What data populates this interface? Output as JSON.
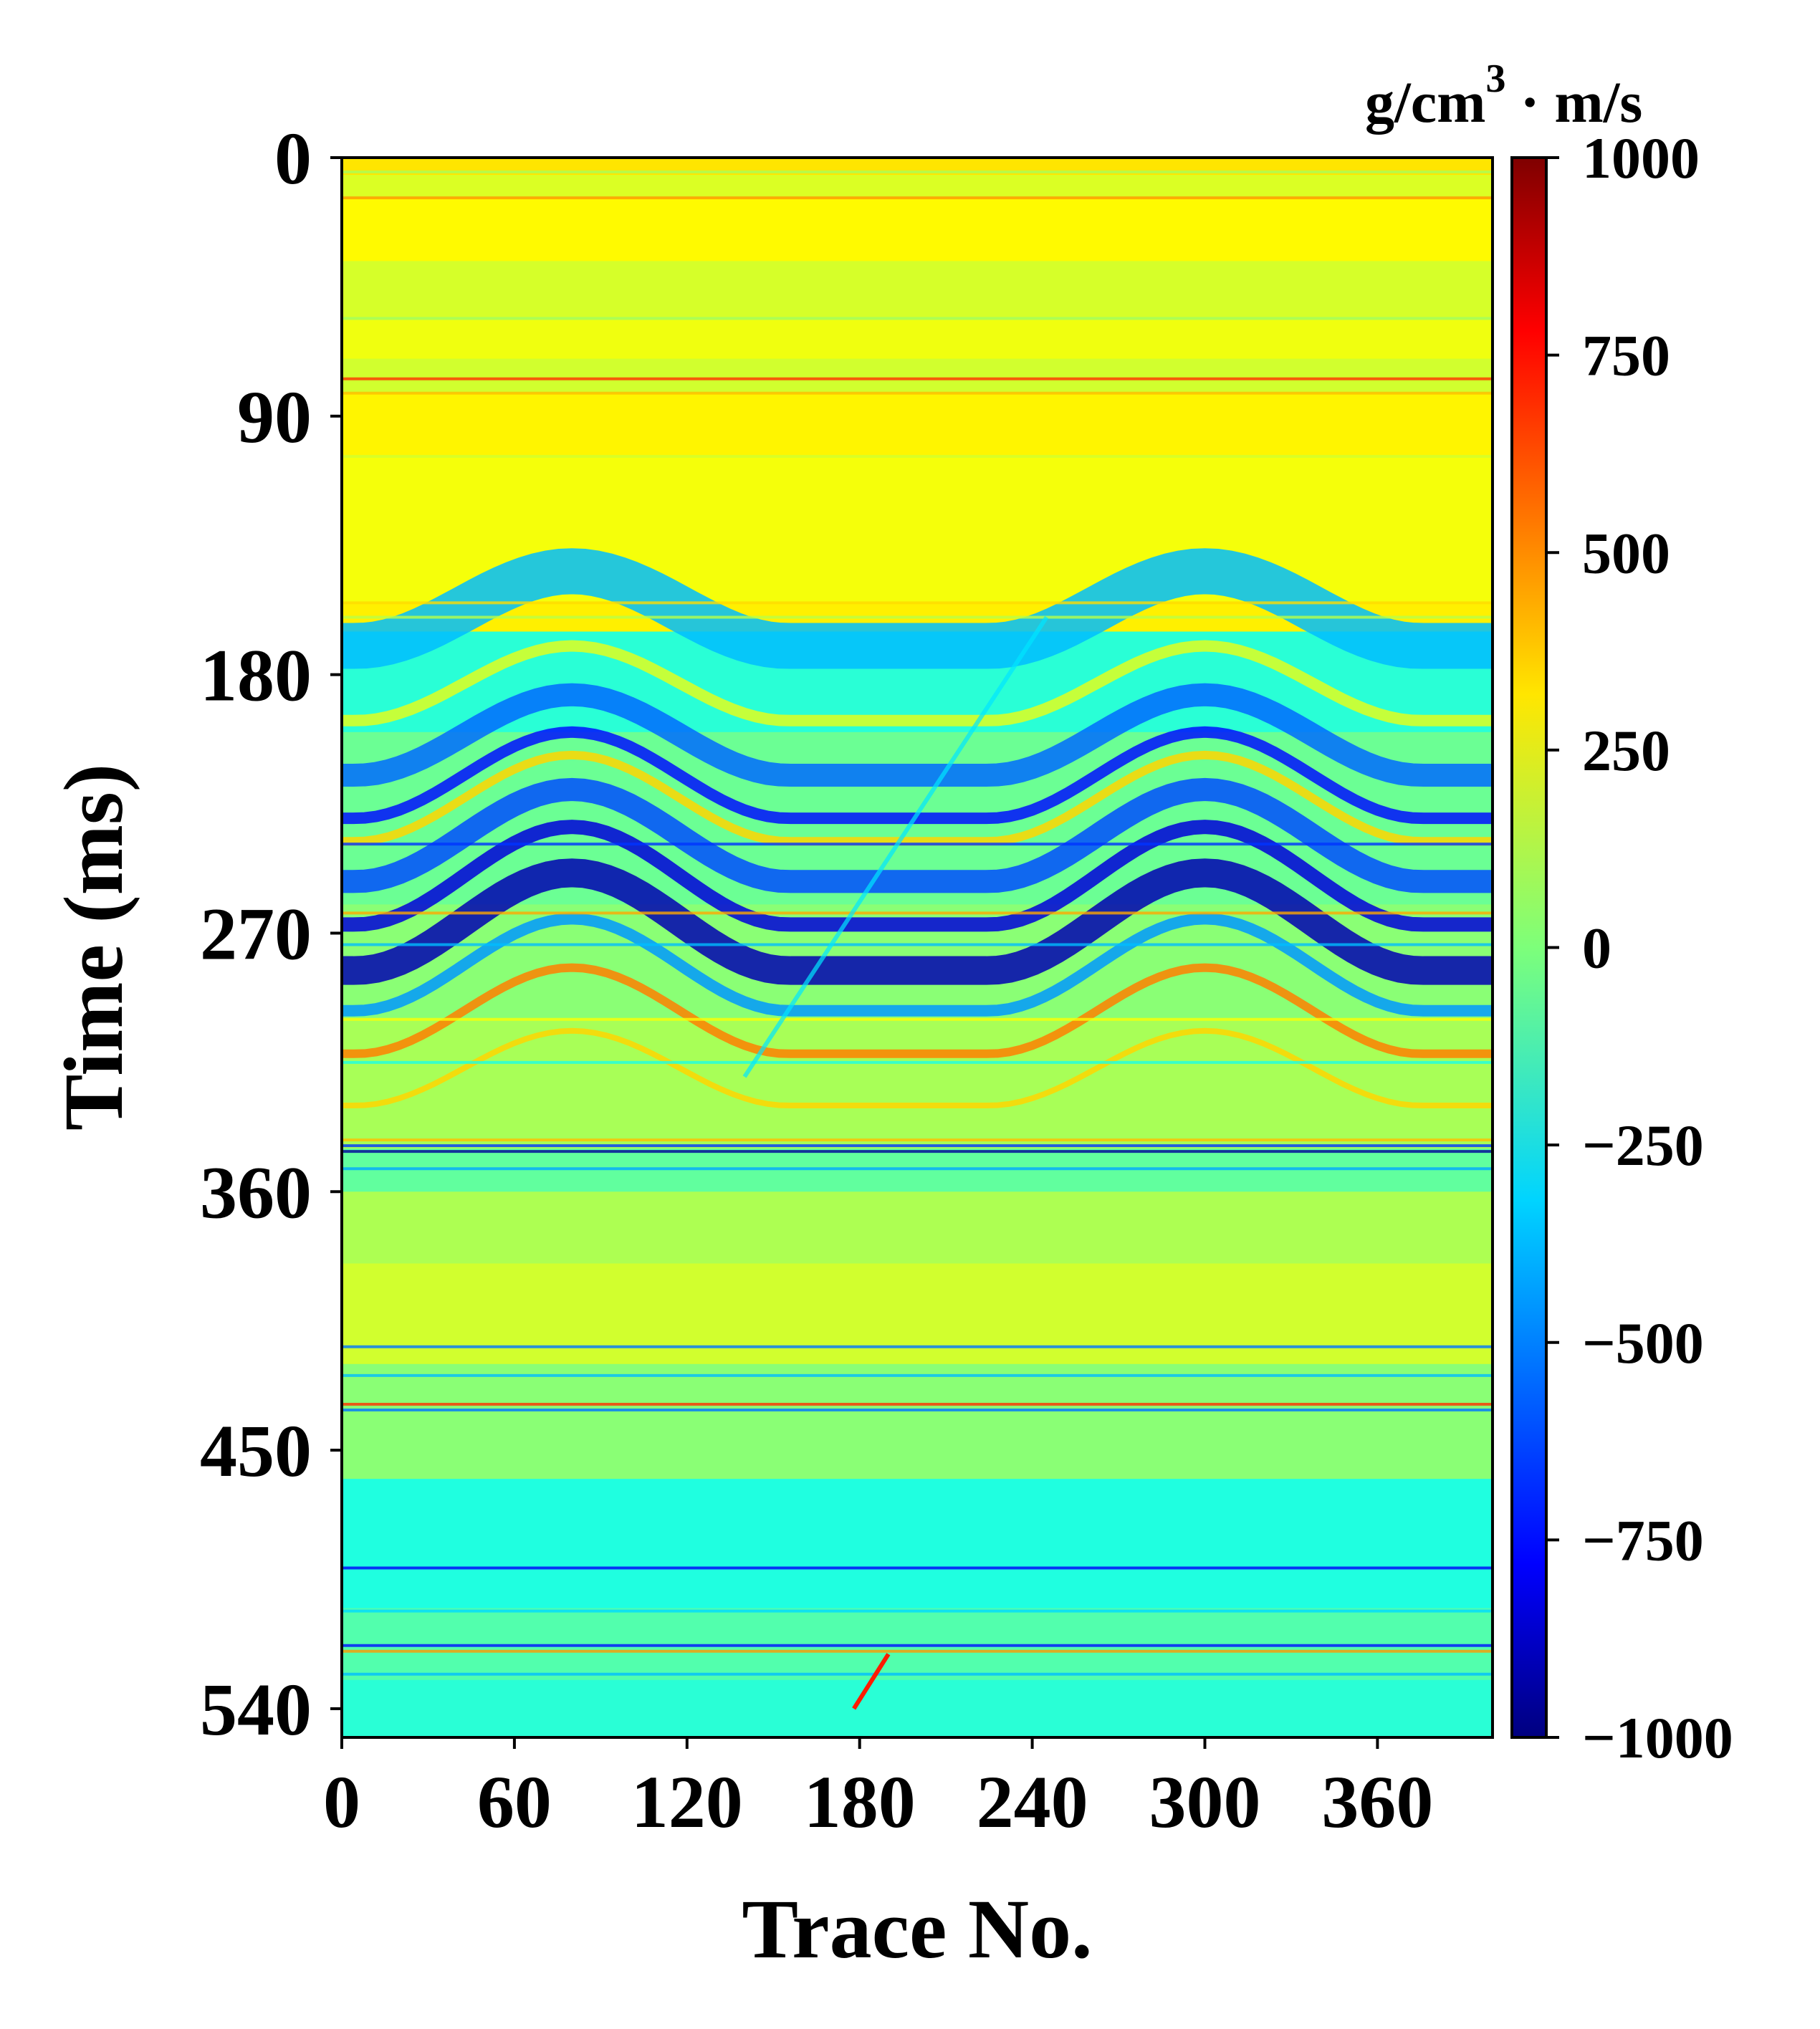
{
  "chart_data": {
    "type": "heatmap",
    "title": "",
    "xlabel": "Trace No.",
    "ylabel": "Time (ms)",
    "xlim": [
      0,
      400
    ],
    "ylim": [
      0,
      550
    ],
    "y_inverted": true,
    "x_ticks": [
      0,
      60,
      120,
      180,
      240,
      300,
      360
    ],
    "y_ticks": [
      0,
      90,
      180,
      270,
      360,
      450,
      540
    ],
    "colorbar": {
      "unit_main": "g/cm",
      "unit_sup": "3",
      "unit_tail": "· m/s",
      "range": [
        -1000,
        1000
      ],
      "ticks": [
        1000,
        750,
        500,
        250,
        0,
        -250,
        -500,
        -750,
        -1000
      ],
      "tick_labels": [
        "1000",
        "750",
        "500",
        "250",
        "0",
        "−250",
        "−500",
        "−750",
        "−1000"
      ],
      "colormap": "jet"
    },
    "background_bands": [
      {
        "t0": 0,
        "t1": 6,
        "value": 300
      },
      {
        "t0": 6,
        "t1": 14,
        "value": 180
      },
      {
        "t0": 14,
        "t1": 36,
        "value": 260
      },
      {
        "t0": 36,
        "t1": 56,
        "value": 170
      },
      {
        "t0": 56,
        "t1": 70,
        "value": 220
      },
      {
        "t0": 70,
        "t1": 82,
        "value": 160
      },
      {
        "t0": 82,
        "t1": 104,
        "value": 270
      },
      {
        "t0": 104,
        "t1": 155,
        "value": 230
      },
      {
        "t0": 155,
        "t1": 165,
        "value": 280
      },
      {
        "t0": 165,
        "t1": 200,
        "value": -170
      },
      {
        "t0": 200,
        "t1": 260,
        "value": -40
      },
      {
        "t0": 260,
        "t1": 300,
        "value": 20
      },
      {
        "t0": 300,
        "t1": 345,
        "value": 80
      },
      {
        "t0": 345,
        "t1": 360,
        "value": -60
      },
      {
        "t0": 360,
        "t1": 385,
        "value": 90
      },
      {
        "t0": 385,
        "t1": 420,
        "value": 160
      },
      {
        "t0": 420,
        "t1": 460,
        "value": 20
      },
      {
        "t0": 460,
        "t1": 505,
        "value": -190
      },
      {
        "t0": 505,
        "t1": 530,
        "value": -90
      },
      {
        "t0": 530,
        "t1": 550,
        "value": -170
      }
    ],
    "reflector_lines": [
      {
        "t": 5,
        "value": 80
      },
      {
        "t": 14,
        "value": 450
      },
      {
        "t": 56,
        "value": 60
      },
      {
        "t": 77,
        "value": 650
      },
      {
        "t": 82,
        "value": 380
      },
      {
        "t": 104,
        "value": 160
      },
      {
        "t": 155,
        "value": 320
      },
      {
        "t": 160,
        "value": 110
      },
      {
        "t": 239,
        "value": -650
      },
      {
        "t": 263,
        "value": 420
      },
      {
        "t": 274,
        "value": -380
      },
      {
        "t": 300,
        "value": 240
      },
      {
        "t": 315,
        "value": -200
      },
      {
        "t": 342,
        "value": 380
      },
      {
        "t": 344,
        "value": -650
      },
      {
        "t": 346,
        "value": -950
      },
      {
        "t": 352,
        "value": -420
      },
      {
        "t": 414,
        "value": -520
      },
      {
        "t": 424,
        "value": -380
      },
      {
        "t": 434,
        "value": 650
      },
      {
        "t": 436,
        "value": -520
      },
      {
        "t": 491,
        "value": -760
      },
      {
        "t": 506,
        "value": -320
      },
      {
        "t": 518,
        "value": -720
      },
      {
        "t": 520,
        "value": 450
      },
      {
        "t": 528,
        "value": -380
      }
    ],
    "folded_layers": [
      {
        "t": 170,
        "amp": 26,
        "value": -380,
        "width_ms": 16
      },
      {
        "t": 196,
        "amp": 26,
        "value": 190,
        "width_ms": 4
      },
      {
        "t": 215,
        "amp": 28,
        "value": -540,
        "width_ms": 8
      },
      {
        "t": 230,
        "amp": 30,
        "value": -720,
        "width_ms": 4
      },
      {
        "t": 238,
        "amp": 30,
        "value": 330,
        "width_ms": 3
      },
      {
        "t": 252,
        "amp": 32,
        "value": -600,
        "width_ms": 8
      },
      {
        "t": 267,
        "amp": 34,
        "value": -820,
        "width_ms": 5
      },
      {
        "t": 283,
        "amp": 34,
        "value": -900,
        "width_ms": 10
      },
      {
        "t": 297,
        "amp": 32,
        "value": -450,
        "width_ms": 4
      },
      {
        "t": 312,
        "amp": 30,
        "value": 500,
        "width_ms": 3
      },
      {
        "t": 330,
        "amp": 26,
        "value": 330,
        "width_ms": 2
      }
    ],
    "anticline_centers_trace": [
      80,
      300
    ],
    "fault": {
      "trace_top": 245,
      "time_top": 160,
      "trace_bottom": 140,
      "time_bottom": 320
    },
    "lower_fault": {
      "trace_top": 190,
      "time_top": 521,
      "trace_bottom": 178,
      "time_bottom": 540
    }
  }
}
